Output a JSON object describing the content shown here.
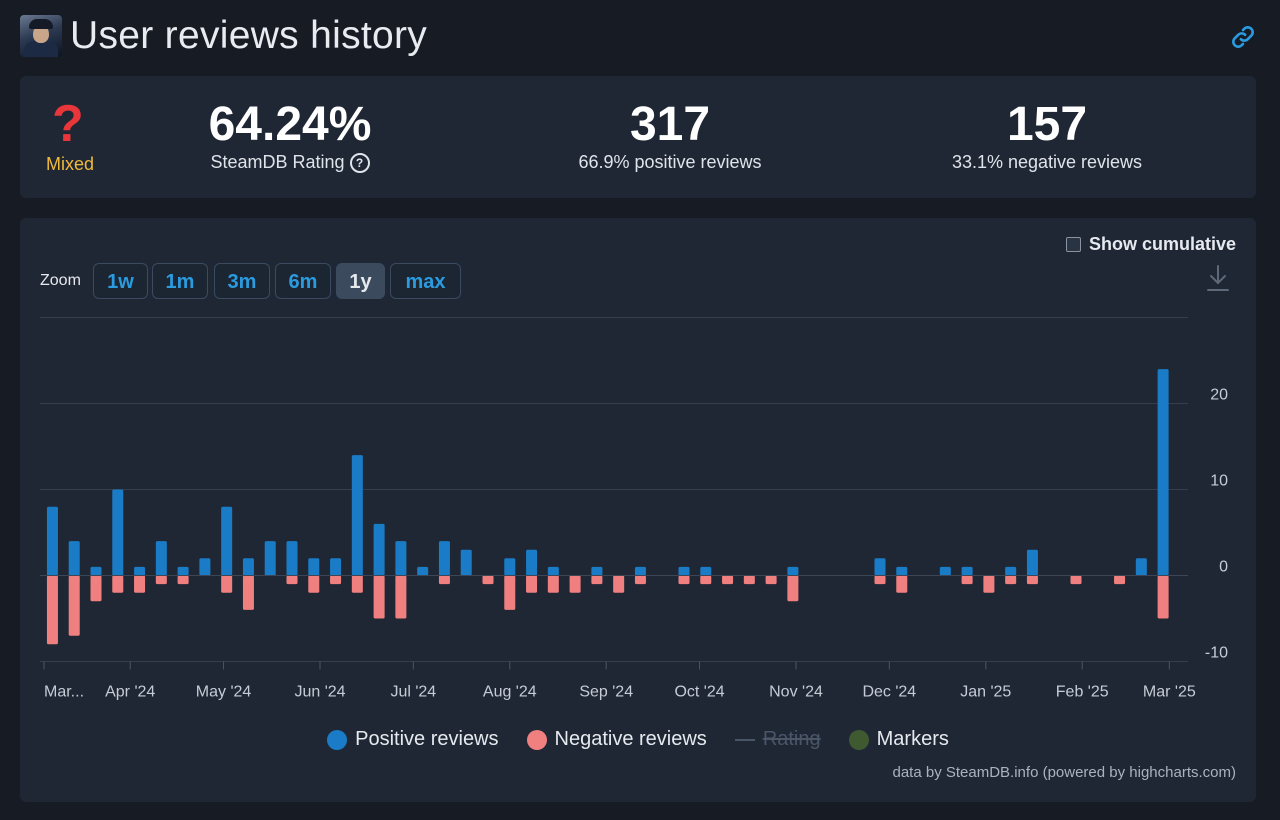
{
  "header": {
    "title": "User reviews history"
  },
  "summary": {
    "verdict": "Mixed",
    "rating": {
      "value": "64.24%",
      "label": "SteamDB Rating"
    },
    "positive": {
      "count": "317",
      "label": "66.9% positive reviews"
    },
    "negative": {
      "count": "157",
      "label": "33.1% negative reviews"
    }
  },
  "controls": {
    "cumulative_label": "Show cumulative",
    "zoom_label": "Zoom",
    "zoom_buttons": [
      "1w",
      "1m",
      "3m",
      "6m",
      "1y",
      "max"
    ],
    "zoom_selected": "1y"
  },
  "legend": [
    "Positive reviews",
    "Negative reviews",
    "Rating",
    "Markers"
  ],
  "credits": "data by SteamDB.info (powered by highcharts.com)",
  "colors": {
    "positive": "#1a7cc6",
    "negative": "#f08080",
    "markers": "#3f5a30",
    "accent": "#2b9be0",
    "verdict": "#f0b93b"
  },
  "chart_data": {
    "type": "bar",
    "x_tick_labels": [
      "Mar...",
      "Apr '24",
      "May '24",
      "Jun '24",
      "Jul '24",
      "Aug '24",
      "Sep '24",
      "Oct '24",
      "Nov '24",
      "Dec '24",
      "Jan '25",
      "Feb '25",
      "Mar '25"
    ],
    "y_tick_labels": [
      "20",
      "10",
      "0",
      "-10"
    ],
    "ylim": [
      -10,
      30
    ],
    "grid": true,
    "legend_position": "bottom-center",
    "x_start": "2024-03-03",
    "x_end": "2025-03-07",
    "series": [
      {
        "name": "Positive reviews",
        "values": [
          [
            "2024-03-07",
            8
          ],
          [
            "2024-03-14",
            4
          ],
          [
            "2024-03-21",
            1
          ],
          [
            "2024-03-28",
            10
          ],
          [
            "2024-04-04",
            1
          ],
          [
            "2024-04-11",
            4
          ],
          [
            "2024-04-18",
            1
          ],
          [
            "2024-04-25",
            2
          ],
          [
            "2024-05-02",
            8
          ],
          [
            "2024-05-09",
            2
          ],
          [
            "2024-05-16",
            4
          ],
          [
            "2024-05-23",
            4
          ],
          [
            "2024-05-30",
            2
          ],
          [
            "2024-06-06",
            2
          ],
          [
            "2024-06-13",
            14
          ],
          [
            "2024-06-20",
            6
          ],
          [
            "2024-06-27",
            4
          ],
          [
            "2024-07-04",
            1
          ],
          [
            "2024-07-11",
            4
          ],
          [
            "2024-07-18",
            3
          ],
          [
            "2024-08-01",
            2
          ],
          [
            "2024-08-08",
            3
          ],
          [
            "2024-08-15",
            1
          ],
          [
            "2024-08-29",
            1
          ],
          [
            "2024-09-12",
            1
          ],
          [
            "2024-09-26",
            1
          ],
          [
            "2024-10-03",
            1
          ],
          [
            "2024-10-31",
            1
          ],
          [
            "2024-11-28",
            2
          ],
          [
            "2024-12-05",
            1
          ],
          [
            "2024-12-19",
            1
          ],
          [
            "2024-12-26",
            1
          ],
          [
            "2025-01-09",
            1
          ],
          [
            "2025-01-16",
            3
          ],
          [
            "2025-02-20",
            2
          ],
          [
            "2025-02-27",
            24
          ]
        ]
      },
      {
        "name": "Negative reviews",
        "values": [
          [
            "2024-03-07",
            -8
          ],
          [
            "2024-03-14",
            -7
          ],
          [
            "2024-03-21",
            -3
          ],
          [
            "2024-03-28",
            -2
          ],
          [
            "2024-04-04",
            -2
          ],
          [
            "2024-04-11",
            -1
          ],
          [
            "2024-04-18",
            -1
          ],
          [
            "2024-05-02",
            -2
          ],
          [
            "2024-05-09",
            -4
          ],
          [
            "2024-05-23",
            -1
          ],
          [
            "2024-05-30",
            -2
          ],
          [
            "2024-06-06",
            -1
          ],
          [
            "2024-06-13",
            -2
          ],
          [
            "2024-06-20",
            -5
          ],
          [
            "2024-06-27",
            -5
          ],
          [
            "2024-07-11",
            -1
          ],
          [
            "2024-07-25",
            -1
          ],
          [
            "2024-08-01",
            -4
          ],
          [
            "2024-08-08",
            -2
          ],
          [
            "2024-08-15",
            -2
          ],
          [
            "2024-08-22",
            -2
          ],
          [
            "2024-08-29",
            -1
          ],
          [
            "2024-09-05",
            -2
          ],
          [
            "2024-09-12",
            -1
          ],
          [
            "2024-09-26",
            -1
          ],
          [
            "2024-10-03",
            -1
          ],
          [
            "2024-10-10",
            -1
          ],
          [
            "2024-10-17",
            -1
          ],
          [
            "2024-10-24",
            -1
          ],
          [
            "2024-10-31",
            -3
          ],
          [
            "2024-11-28",
            -1
          ],
          [
            "2024-12-05",
            -2
          ],
          [
            "2024-12-26",
            -1
          ],
          [
            "2025-01-02",
            -2
          ],
          [
            "2025-01-09",
            -1
          ],
          [
            "2025-01-16",
            -1
          ],
          [
            "2025-01-30",
            -1
          ],
          [
            "2025-02-13",
            -1
          ],
          [
            "2025-02-27",
            -5
          ]
        ]
      }
    ]
  }
}
